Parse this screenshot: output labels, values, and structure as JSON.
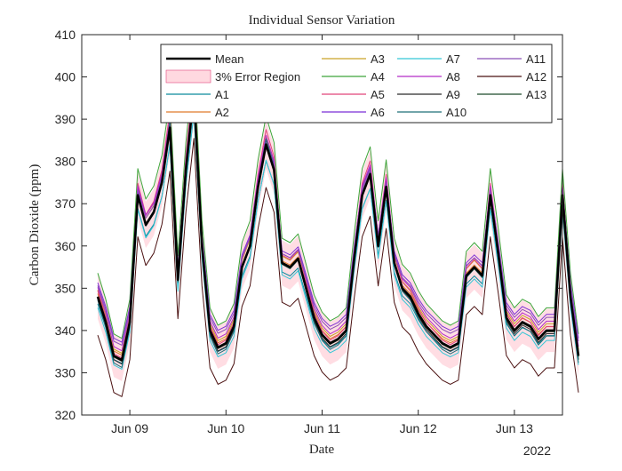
{
  "chart_data": {
    "type": "line",
    "title": "Individual Sensor Variation",
    "xlabel": "Date",
    "ylabel": "Carbon Dioxide (ppm)",
    "x_tick_labels": [
      "Jun 09",
      "Jun 10",
      "Jun 11",
      "Jun 12",
      "Jun 13"
    ],
    "x_year_label": "2022",
    "xlim": [
      "2022-06-08 12:00",
      "2022-06-13 12:00"
    ],
    "ylim": [
      320,
      410
    ],
    "y_ticks": [
      320,
      330,
      340,
      350,
      360,
      370,
      380,
      390,
      400,
      410
    ],
    "grid": false,
    "legend_placement": "top-right",
    "error_region_percent": 3,
    "error_region_color": "#ffd9e0",
    "sample_interval_hours": 2,
    "x_start": "2022-06-08 16:00",
    "mean": [
      348,
      342,
      334,
      333,
      342,
      372,
      365,
      368,
      375,
      388,
      352,
      378,
      396,
      360,
      340,
      336,
      337,
      341,
      355,
      360,
      374,
      384,
      378,
      356,
      355,
      357,
      350,
      343,
      339,
      337,
      338,
      340,
      357,
      372,
      377,
      360,
      374,
      356,
      350,
      348,
      344,
      341,
      339,
      337,
      336,
      337,
      353,
      355,
      353,
      372,
      358,
      343,
      340,
      342,
      341,
      338,
      340,
      340,
      372,
      348,
      334
    ],
    "series": [
      {
        "name": "Mean",
        "color": "#000000",
        "offset": 0
      },
      {
        "name": "A1",
        "color": "#0b8a9c",
        "offset": -1.5
      },
      {
        "name": "A2",
        "color": "#e07b2a",
        "offset": 0.8
      },
      {
        "name": "A3",
        "color": "#c9a227",
        "offset": 1.6
      },
      {
        "name": "A4",
        "color": "#3fa53a",
        "offset": 5.5
      },
      {
        "name": "A5",
        "color": "#e0447a",
        "offset": 1.2
      },
      {
        "name": "A6",
        "color": "#7b2fd6",
        "offset": 3.5
      },
      {
        "name": "A7",
        "color": "#35c7d6",
        "offset": -2.5
      },
      {
        "name": "A8",
        "color": "#b52cc7",
        "offset": 2.2
      },
      {
        "name": "A9",
        "color": "#2b2b2b",
        "offset": -0.6
      },
      {
        "name": "A10",
        "color": "#1f6f77",
        "offset": -1.0
      },
      {
        "name": "A11",
        "color": "#8a4fb8",
        "offset": 2.8
      },
      {
        "name": "A12",
        "color": "#4a1010",
        "offset": -9.0
      },
      {
        "name": "A13",
        "color": "#1c4a2b",
        "offset": -0.3
      }
    ],
    "legend_items": [
      {
        "label": "Mean",
        "color": "#000000"
      },
      {
        "label": "3% Error Region",
        "color": "#ffd9e0"
      },
      {
        "label": "A1",
        "color": "#0b8a9c"
      },
      {
        "label": "A2",
        "color": "#e07b2a"
      },
      {
        "label": "A3",
        "color": "#c9a227"
      },
      {
        "label": "A4",
        "color": "#3fa53a"
      },
      {
        "label": "A5",
        "color": "#e0447a"
      },
      {
        "label": "A6",
        "color": "#7b2fd6"
      },
      {
        "label": "A7",
        "color": "#35c7d6"
      },
      {
        "label": "A8",
        "color": "#b52cc7"
      },
      {
        "label": "A9",
        "color": "#2b2b2b"
      },
      {
        "label": "A10",
        "color": "#1f6f77"
      },
      {
        "label": "A11",
        "color": "#8a4fb8"
      },
      {
        "label": "A12",
        "color": "#4a1010"
      },
      {
        "label": "A13",
        "color": "#1c4a2b"
      }
    ]
  }
}
